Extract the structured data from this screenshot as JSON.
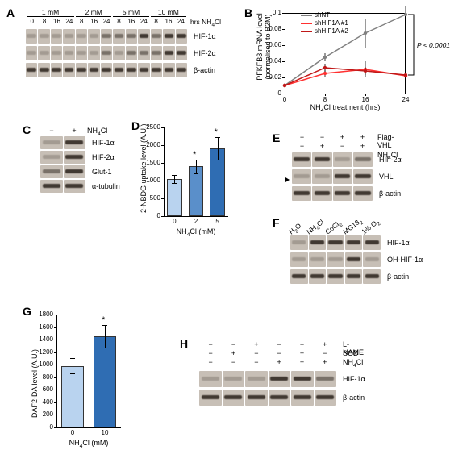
{
  "panelA": {
    "label": "A",
    "dose_headers": [
      "1 mM",
      "2 mM",
      "5 mM",
      "10 mM"
    ],
    "time_headers": [
      "0",
      "8",
      "16",
      "24",
      "8",
      "16",
      "24",
      "8",
      "16",
      "24",
      "8",
      "16",
      "24"
    ],
    "time_axis_label": "hrs NH4Cl",
    "rows": [
      {
        "name": "HIF-1α",
        "bands": [
          "faint",
          "faint",
          "faint",
          "faint",
          "faint",
          "faint",
          "mid",
          "mid",
          "mid",
          "strong",
          "mid",
          "strong",
          "strong"
        ]
      },
      {
        "name": "HIF-2α",
        "bands": [
          "faint",
          "faint",
          "faint",
          "faint",
          "faint",
          "faint",
          "mid",
          "faint",
          "mid",
          "mid",
          "mid",
          "strong",
          "strong"
        ]
      },
      {
        "name": "β-actin",
        "bands": [
          "strong",
          "strong",
          "strong",
          "strong",
          "strong",
          "strong",
          "strong",
          "strong",
          "strong",
          "strong",
          "strong",
          "strong",
          "strong"
        ]
      }
    ]
  },
  "panelB": {
    "label": "B",
    "y_title": "PFKFB3 mRNA level\n(normalised to B2M)",
    "x_title": "NH4Cl treatment (hrs)",
    "x_ticks": [
      0,
      8,
      16,
      24
    ],
    "y_ticks": [
      0,
      0.02,
      0.04,
      0.06,
      0.08,
      0.1
    ],
    "ylim": [
      0,
      0.1
    ],
    "p_text": "P < 0.0001",
    "series": [
      {
        "name": "shNT",
        "color": "#808080",
        "points": [
          {
            "x": 0,
            "y": 0.01,
            "err": 0.002
          },
          {
            "x": 8,
            "y": 0.045,
            "err": 0.005
          },
          {
            "x": 16,
            "y": 0.075,
            "err": 0.018
          },
          {
            "x": 24,
            "y": 0.098,
            "err": 0.01
          }
        ]
      },
      {
        "name": "shHIF1A #1",
        "color": "#ff3030",
        "points": [
          {
            "x": 0,
            "y": 0.01,
            "err": 0.002
          },
          {
            "x": 8,
            "y": 0.025,
            "err": 0.005
          },
          {
            "x": 16,
            "y": 0.03,
            "err": 0.01
          },
          {
            "x": 24,
            "y": 0.022,
            "err": 0.002
          }
        ]
      },
      {
        "name": "shHIF1A #2",
        "color": "#c01818",
        "points": [
          {
            "x": 0,
            "y": 0.01,
            "err": 0.002
          },
          {
            "x": 8,
            "y": 0.032,
            "err": 0.005
          },
          {
            "x": 16,
            "y": 0.028,
            "err": 0.005
          },
          {
            "x": 24,
            "y": 0.023,
            "err": 0.002
          }
        ]
      }
    ]
  },
  "panelC": {
    "label": "C",
    "col_headers": [
      "−",
      "+"
    ],
    "treatment_label": "NH4Cl",
    "rows": [
      {
        "name": "HIF-1α",
        "bands": [
          "faint",
          "strong"
        ]
      },
      {
        "name": "HIF-2α",
        "bands": [
          "faint",
          "strong"
        ]
      },
      {
        "name": "Glut-1",
        "bands": [
          "mid",
          "strong"
        ]
      },
      {
        "name": "α-tubulin",
        "bands": [
          "strong",
          "strong"
        ]
      }
    ]
  },
  "panelD": {
    "label": "D",
    "y_title": "2-NBDG uptake level (A.U.)",
    "x_title": "NH4Cl (mM)",
    "y_ticks": [
      0,
      500,
      1000,
      1500,
      2000,
      2500
    ],
    "ylim": [
      0,
      2500
    ],
    "categories": [
      "0",
      "2",
      "5"
    ],
    "values": [
      1050,
      1400,
      1900
    ],
    "errs": [
      120,
      200,
      320
    ],
    "colors": [
      "#b9d3ef",
      "#5a8fca",
      "#2f6db3"
    ],
    "sig": [
      "",
      "*",
      "*"
    ]
  },
  "panelE": {
    "label": "E",
    "header_rows": [
      {
        "label": "Flag-VHL",
        "marks": [
          "−",
          "−",
          "+",
          "+"
        ]
      },
      {
        "label": "NH4Cl",
        "marks": [
          "−",
          "+",
          "−",
          "+"
        ]
      }
    ],
    "rows": [
      {
        "name": "HIF-2α",
        "bands": [
          "strong",
          "strong",
          "faint",
          "mid"
        ]
      },
      {
        "name": "VHL",
        "bands": [
          "faint",
          "faint",
          "strong",
          "strong"
        ],
        "arrow": true
      },
      {
        "name": "β-actin",
        "bands": [
          "strong",
          "strong",
          "strong",
          "strong"
        ]
      }
    ]
  },
  "panelF": {
    "label": "F",
    "col_headers": [
      "H2O",
      "NH4Cl",
      "CoCl2",
      "MG132",
      "1% O2"
    ],
    "rows": [
      {
        "name": "HIF-1α",
        "bands": [
          "faint",
          "strong",
          "strong",
          "strong",
          "strong"
        ]
      },
      {
        "name": "OH-HIF-1α",
        "bands": [
          "faint",
          "faint",
          "faint",
          "strong",
          "faint"
        ]
      },
      {
        "name": "β-actin",
        "bands": [
          "strong",
          "strong",
          "strong",
          "strong",
          "strong"
        ]
      }
    ]
  },
  "panelG": {
    "label": "G",
    "y_title": "DAF2-DA level (A.U.)",
    "x_title": "NH4Cl (mM)",
    "y_ticks": [
      0,
      200,
      400,
      600,
      800,
      1000,
      1200,
      1400,
      1600,
      1800
    ],
    "ylim": [
      0,
      1800
    ],
    "categories": [
      "0",
      "10"
    ],
    "values": [
      980,
      1450
    ],
    "errs": [
      120,
      180
    ],
    "colors": [
      "#b9d3ef",
      "#2f6db3"
    ],
    "sig": [
      "",
      "*"
    ]
  },
  "panelH": {
    "label": "H",
    "header_rows": [
      {
        "label": "L-NAME",
        "marks": [
          "−",
          "−",
          "+",
          "−",
          "−",
          "+"
        ]
      },
      {
        "label": "SOD",
        "marks": [
          "−",
          "+",
          "−",
          "−",
          "+",
          "−"
        ]
      },
      {
        "label": "NH4Cl",
        "marks": [
          "−",
          "−",
          "−",
          "+",
          "+",
          "+"
        ]
      }
    ],
    "rows": [
      {
        "name": "HIF-1α",
        "bands": [
          "faint",
          "faint",
          "faint",
          "strong",
          "strong",
          "mid"
        ]
      },
      {
        "name": "β-actin",
        "bands": [
          "strong",
          "strong",
          "strong",
          "strong",
          "strong",
          "strong"
        ]
      }
    ]
  }
}
